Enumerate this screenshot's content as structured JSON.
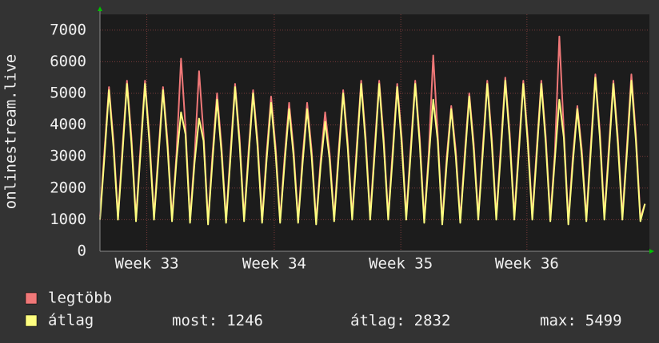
{
  "chart_data": {
    "type": "line",
    "y_label": "onlinestream.live",
    "ylim": [
      0,
      7500
    ],
    "yticks": [
      0,
      1000,
      2000,
      3000,
      4000,
      5000,
      6000,
      7000
    ],
    "xlim": [
      0,
      122
    ],
    "xticks": [
      {
        "value": 10.4,
        "label": "Week 33"
      },
      {
        "value": 38.7,
        "label": "Week 34"
      },
      {
        "value": 66.8,
        "label": "Week 35"
      },
      {
        "value": 94.8,
        "label": "Week 36"
      }
    ],
    "grid": true,
    "series": [
      {
        "name": "legtöbb",
        "color": "#f07878",
        "values": [
          1100,
          3200,
          5200,
          3500,
          1100,
          3300,
          5400,
          3600,
          1050,
          3300,
          5400,
          3600,
          1100,
          3200,
          5200,
          3500,
          1050,
          3100,
          6100,
          3900,
          1000,
          3000,
          5700,
          3700,
          950,
          3100,
          5000,
          3300,
          1000,
          3200,
          5300,
          3600,
          1050,
          3200,
          5100,
          3500,
          1000,
          3100,
          4900,
          3300,
          1000,
          3000,
          4700,
          3200,
          1000,
          3000,
          4700,
          3200,
          950,
          2900,
          4400,
          3100,
          1050,
          3200,
          5100,
          3500,
          1100,
          3300,
          5400,
          3600,
          1100,
          3300,
          5400,
          3600,
          1100,
          3200,
          5300,
          3600,
          1100,
          3300,
          5400,
          3600,
          1000,
          3100,
          6200,
          3700,
          950,
          3000,
          4600,
          3200,
          1000,
          3100,
          5000,
          3400,
          1100,
          3300,
          5400,
          3600,
          1100,
          3300,
          5500,
          3700,
          1100,
          3300,
          5400,
          3600,
          1100,
          3300,
          5400,
          3600,
          1050,
          3100,
          6800,
          3800,
          950,
          3000,
          4600,
          3200,
          1050,
          3400,
          5600,
          3800,
          1100,
          3300,
          5400,
          3600,
          1100,
          3300,
          5600,
          3700,
          1050,
          1500
        ]
      },
      {
        "name": "átlag",
        "color": "#ffff80",
        "values": [
          1000,
          3000,
          5100,
          3300,
          1000,
          3100,
          5300,
          3400,
          950,
          3100,
          5300,
          3400,
          1000,
          3000,
          5100,
          3300,
          950,
          2900,
          4400,
          3700,
          900,
          2800,
          4200,
          3500,
          850,
          2900,
          4800,
          3100,
          900,
          3000,
          5200,
          3400,
          950,
          3000,
          5000,
          3300,
          900,
          2900,
          4700,
          3100,
          900,
          2800,
          4500,
          3000,
          900,
          2800,
          4500,
          3000,
          850,
          2700,
          4100,
          2900,
          950,
          3000,
          5000,
          3300,
          1000,
          3100,
          5300,
          3400,
          1000,
          3100,
          5300,
          3400,
          1000,
          3000,
          5200,
          3400,
          1000,
          3100,
          5300,
          3400,
          900,
          2900,
          4800,
          3500,
          850,
          2800,
          4500,
          3000,
          900,
          2900,
          4900,
          3200,
          1000,
          3100,
          5300,
          3400,
          1000,
          3100,
          5400,
          3500,
          1000,
          3100,
          5300,
          3400,
          1000,
          3100,
          5300,
          3400,
          950,
          2900,
          4800,
          3600,
          850,
          2800,
          4500,
          3000,
          950,
          3200,
          5500,
          3600,
          1000,
          3100,
          5300,
          3400,
          1000,
          3100,
          5400,
          3500,
          950,
          1500
        ]
      }
    ],
    "stats": [
      {
        "label": "most:",
        "value": 1246
      },
      {
        "label": "átlag:",
        "value": 2832
      },
      {
        "label": "max:",
        "value": 5499
      }
    ]
  }
}
